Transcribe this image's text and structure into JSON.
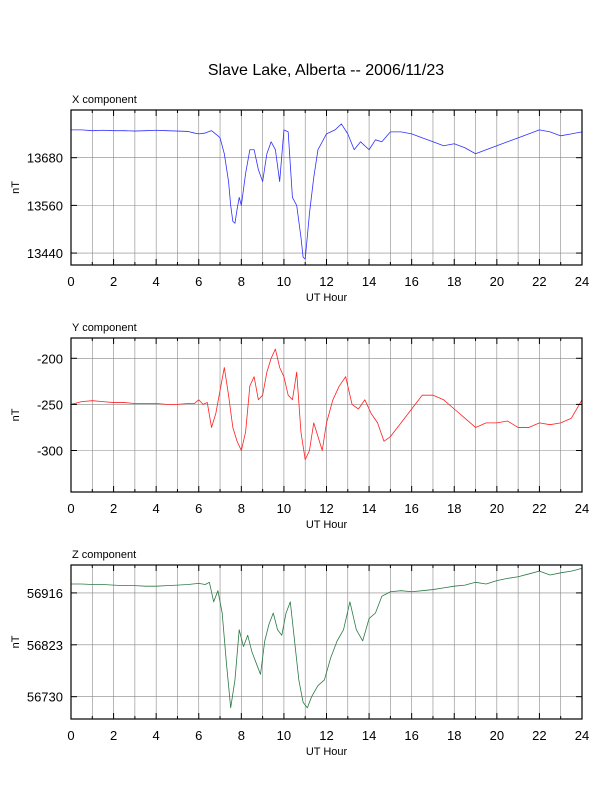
{
  "title": "Slave Lake, Alberta -- 2006/11/23",
  "chart_data": [
    {
      "type": "line",
      "panel_label": "X component",
      "xlabel": "UT Hour",
      "ylabel": "nT",
      "xlim": [
        0,
        24
      ],
      "ylim": [
        13410,
        13800
      ],
      "xticks": [
        0,
        2,
        4,
        6,
        8,
        10,
        12,
        14,
        16,
        18,
        20,
        22,
        24
      ],
      "yticks": [
        13440,
        13560,
        13680
      ],
      "grid": true,
      "color": "#3030ff",
      "series": [
        {
          "x": [
            0,
            0.5,
            1,
            1.5,
            2,
            2.5,
            3,
            3.5,
            4,
            4.5,
            5,
            5.5,
            5.8,
            6,
            6.3,
            6.6,
            6.9,
            7.0,
            7.2,
            7.4,
            7.5,
            7.6,
            7.7,
            7.8,
            7.9,
            8.0,
            8.2,
            8.4,
            8.6,
            8.8,
            9.0,
            9.2,
            9.4,
            9.6,
            9.8,
            10.0,
            10.2,
            10.4,
            10.6,
            10.8,
            10.9,
            11.0,
            11.2,
            11.4,
            11.6,
            11.8,
            12.0,
            12.2,
            12.4,
            12.7,
            13.0,
            13.3,
            13.6,
            14.0,
            14.3,
            14.6,
            15.0,
            15.5,
            16.0,
            16.5,
            17.0,
            17.5,
            18.0,
            18.5,
            19.0,
            19.5,
            20.0,
            20.5,
            21.0,
            21.5,
            22.0,
            22.5,
            23.0,
            23.5,
            24.0
          ],
          "y": [
            13750,
            13750,
            13748,
            13749,
            13748,
            13748,
            13747,
            13748,
            13749,
            13748,
            13747,
            13746,
            13742,
            13740,
            13742,
            13748,
            13735,
            13730,
            13690,
            13620,
            13560,
            13520,
            13515,
            13550,
            13580,
            13560,
            13640,
            13700,
            13700,
            13650,
            13620,
            13690,
            13720,
            13700,
            13620,
            13750,
            13745,
            13580,
            13560,
            13480,
            13430,
            13425,
            13540,
            13630,
            13700,
            13720,
            13740,
            13745,
            13750,
            13765,
            13740,
            13700,
            13720,
            13700,
            13725,
            13720,
            13745,
            13745,
            13740,
            13730,
            13720,
            13710,
            13715,
            13705,
            13690,
            13700,
            13710,
            13720,
            13730,
            13740,
            13750,
            13745,
            13735,
            13740,
            13745
          ]
        }
      ]
    },
    {
      "type": "line",
      "panel_label": "Y component",
      "xlabel": "UT Hour",
      "ylabel": "nT",
      "xlim": [
        0,
        24
      ],
      "ylim": [
        -345,
        -178
      ],
      "xticks": [
        0,
        2,
        4,
        6,
        8,
        10,
        12,
        14,
        16,
        18,
        20,
        22,
        24
      ],
      "yticks": [
        -200,
        -250,
        -300
      ],
      "grid": true,
      "color": "#ff2020",
      "series": [
        {
          "x": [
            0,
            0.5,
            1,
            1.5,
            2,
            2.5,
            3,
            3.5,
            4,
            4.5,
            5,
            5.5,
            5.8,
            6.0,
            6.2,
            6.4,
            6.6,
            6.8,
            7.0,
            7.2,
            7.4,
            7.6,
            7.8,
            8.0,
            8.2,
            8.4,
            8.6,
            8.8,
            9.0,
            9.2,
            9.4,
            9.6,
            9.8,
            10.0,
            10.2,
            10.4,
            10.6,
            10.8,
            11.0,
            11.2,
            11.4,
            11.6,
            11.8,
            12.0,
            12.3,
            12.6,
            12.9,
            13.2,
            13.5,
            13.8,
            14.1,
            14.4,
            14.7,
            15.0,
            15.5,
            16.0,
            16.5,
            17.0,
            17.5,
            18.0,
            18.5,
            19.0,
            19.5,
            20.0,
            20.5,
            21.0,
            21.5,
            22.0,
            22.5,
            23.0,
            23.5,
            24.0
          ],
          "y": [
            -250,
            -247,
            -246,
            -247,
            -248,
            -248,
            -249,
            -249,
            -249,
            -250,
            -250,
            -249,
            -249,
            -245,
            -250,
            -248,
            -275,
            -260,
            -235,
            -210,
            -240,
            -275,
            -290,
            -300,
            -280,
            -230,
            -220,
            -245,
            -240,
            -215,
            -200,
            -190,
            -210,
            -220,
            -240,
            -245,
            -215,
            -280,
            -310,
            -300,
            -270,
            -285,
            -300,
            -270,
            -245,
            -230,
            -220,
            -250,
            -255,
            -245,
            -260,
            -270,
            -290,
            -285,
            -270,
            -255,
            -240,
            -240,
            -245,
            -255,
            -265,
            -275,
            -270,
            -270,
            -268,
            -275,
            -275,
            -270,
            -272,
            -270,
            -265,
            -245
          ]
        }
      ]
    },
    {
      "type": "line",
      "panel_label": "Z component",
      "xlabel": "UT Hour",
      "ylabel": "nT",
      "xlim": [
        0,
        24
      ],
      "ylim": [
        56690,
        56966
      ],
      "xticks": [
        0,
        2,
        4,
        6,
        8,
        10,
        12,
        14,
        16,
        18,
        20,
        22,
        24
      ],
      "yticks": [
        56730,
        56823,
        56916
      ],
      "grid": true,
      "color": "#2a7a44",
      "series": [
        {
          "x": [
            0,
            0.5,
            1,
            1.5,
            2,
            2.5,
            3,
            3.5,
            4,
            4.5,
            5,
            5.5,
            6.0,
            6.3,
            6.5,
            6.7,
            6.9,
            7.1,
            7.3,
            7.5,
            7.7,
            7.9,
            8.1,
            8.3,
            8.5,
            8.7,
            8.9,
            9.1,
            9.3,
            9.5,
            9.7,
            9.9,
            10.1,
            10.3,
            10.5,
            10.7,
            10.9,
            11.1,
            11.3,
            11.6,
            11.9,
            12.2,
            12.5,
            12.8,
            13.1,
            13.4,
            13.7,
            14.0,
            14.3,
            14.6,
            15.0,
            15.5,
            16.0,
            16.5,
            17.0,
            17.5,
            18.0,
            18.5,
            19.0,
            19.5,
            20.0,
            20.5,
            21.0,
            21.5,
            22.0,
            22.5,
            23.0,
            23.5,
            24.0
          ],
          "y": [
            56932,
            56932,
            56931,
            56931,
            56930,
            56929,
            56929,
            56928,
            56928,
            56929,
            56930,
            56931,
            56933,
            56931,
            56935,
            56900,
            56920,
            56880,
            56790,
            56710,
            56760,
            56850,
            56820,
            56840,
            56810,
            56790,
            56770,
            56830,
            56860,
            56880,
            56850,
            56840,
            56880,
            56900,
            56830,
            56760,
            56720,
            56710,
            56730,
            56750,
            56760,
            56800,
            56830,
            56850,
            56900,
            56850,
            56830,
            56870,
            56880,
            56910,
            56918,
            56920,
            56918,
            56920,
            56922,
            56925,
            56928,
            56930,
            56935,
            56932,
            56938,
            56942,
            56945,
            56950,
            56955,
            56948,
            56952,
            56955,
            56960
          ]
        }
      ]
    }
  ]
}
